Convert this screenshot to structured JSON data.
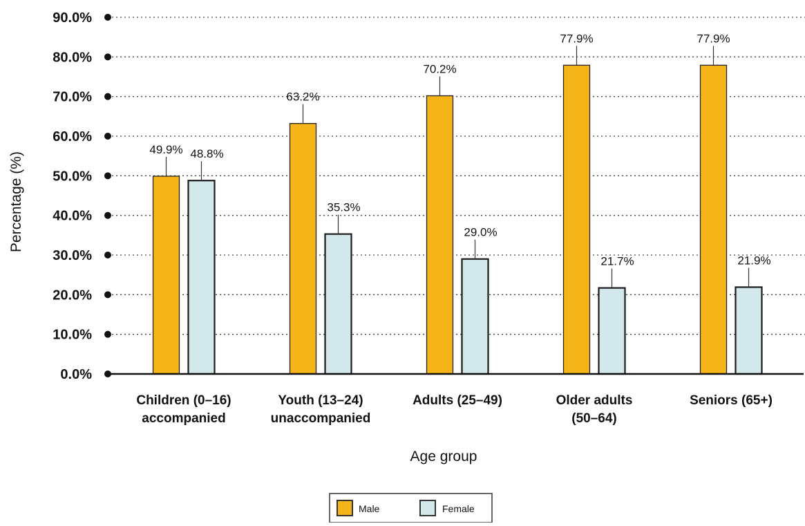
{
  "chart_data": {
    "type": "bar",
    "xlabel": "Age group",
    "ylabel": "Percentage (%)",
    "ylim": [
      0,
      90
    ],
    "ytick_step": 10,
    "ytick_labels": [
      "0.0%",
      "10.0%",
      "20.0%",
      "30.0%",
      "40.0%",
      "50.0%",
      "60.0%",
      "70.0%",
      "80.0%",
      "90.0%"
    ],
    "grid": true,
    "legend_position": "bottom-center",
    "categories": [
      [
        "Children (0–16)",
        "accompanied"
      ],
      [
        "Youth (13–24)",
        "unaccompanied"
      ],
      [
        "Adults (25–49)"
      ],
      [
        "Older adults",
        "(50–64)"
      ],
      [
        "Seniors (65+)"
      ]
    ],
    "series": [
      {
        "name": "Male",
        "color": "#F5B417",
        "values": [
          49.9,
          63.2,
          70.2,
          77.9,
          77.9
        ],
        "labels": [
          "49.9%",
          "63.2%",
          "70.2%",
          "77.9%",
          "77.9%"
        ]
      },
      {
        "name": "Female",
        "color": "#D3E8EA",
        "values": [
          48.8,
          35.3,
          29.0,
          21.7,
          21.9
        ],
        "labels": [
          "48.8%",
          "35.3%",
          "29.0%",
          "21.7%",
          "21.9%"
        ]
      }
    ]
  }
}
